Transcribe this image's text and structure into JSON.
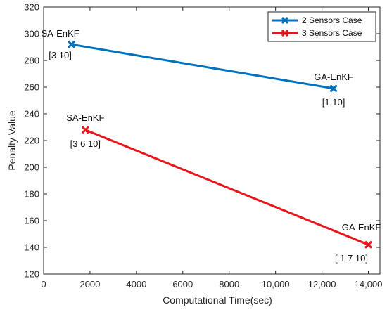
{
  "chart_data": {
    "type": "line",
    "xlabel": "Computational Time(sec)",
    "ylabel": "Penalty Value",
    "xlim": [
      0,
      14500
    ],
    "ylim": [
      120,
      320
    ],
    "x_ticks": [
      0,
      2000,
      4000,
      6000,
      8000,
      10000,
      12000,
      14000
    ],
    "x_tick_labels": [
      "0",
      "2000",
      "4000",
      "6000",
      "8000",
      "10,000",
      "12,000",
      "14,000"
    ],
    "y_ticks": [
      120,
      140,
      160,
      180,
      200,
      220,
      240,
      260,
      280,
      300,
      320
    ],
    "y_tick_labels": [
      "120",
      "140",
      "160",
      "180",
      "200",
      "220",
      "240",
      "260",
      "280",
      "300",
      "320"
    ],
    "grid": false,
    "legend_position": "top-right",
    "series": [
      {
        "name": "2 Sensors Case",
        "color": "#0072bd",
        "marker": "x",
        "x": [
          1200,
          12500
        ],
        "y": [
          292,
          259
        ],
        "point_labels": [
          "SA-EnKF",
          "GA-EnKF"
        ],
        "point_sublabels": [
          "[3 10]",
          "[1 10]"
        ]
      },
      {
        "name": "3 Sensors Case",
        "color": "#e8161b",
        "marker": "x",
        "x": [
          1800,
          14000
        ],
        "y": [
          228,
          142
        ],
        "point_labels": [
          "SA-EnKF",
          "GA-EnKF"
        ],
        "point_sublabels": [
          "[3 6 10]",
          "[ 1 7 10]"
        ]
      }
    ]
  }
}
